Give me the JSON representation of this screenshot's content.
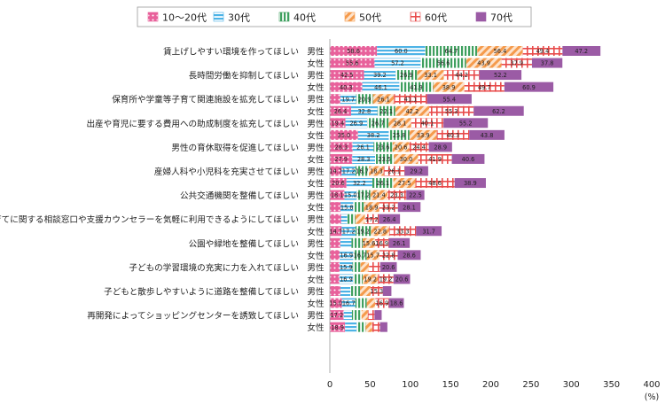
{
  "chart_data": {
    "type": "bar",
    "orientation": "horizontal",
    "stacked": true,
    "unit_label": "(%)",
    "xlim": [
      0,
      400
    ],
    "xticks": [
      0,
      50,
      100,
      150,
      200,
      250,
      300,
      350,
      400
    ],
    "grid": false,
    "legend_position": "top",
    "series": [
      {
        "name": "10～20代",
        "color": "#e8619b",
        "pattern": "dots"
      },
      {
        "name": "30代",
        "color": "#4db3e6",
        "pattern": "hstripes"
      },
      {
        "name": "40代",
        "color": "#3fa05f",
        "pattern": "vstripes"
      },
      {
        "name": "50代",
        "color": "#f59b4c",
        "pattern": "diagonal"
      },
      {
        "name": "60代",
        "color": "#e84b4b",
        "pattern": "grid"
      },
      {
        "name": "70代",
        "color": "#9b5ba5",
        "pattern": "solid"
      }
    ],
    "categories": [
      {
        "label": "賃上げしやすい環境を作ってほしい",
        "rows": [
          {
            "gender": "男性",
            "values": [
              58.6,
              60.0,
              64.7,
              56.4,
              49.4,
              47.2
            ]
          },
          {
            "gender": "女性",
            "values": [
              55.6,
              57.2,
              56.6,
              43.9,
              37.9,
              37.8
            ]
          }
        ]
      },
      {
        "label": "長時間労働を抑制してほしい",
        "rows": [
          {
            "gender": "男性",
            "values": [
              42.5,
              39.2,
              26.9,
              33.1,
              44.2,
              52.2
            ]
          },
          {
            "gender": "女性",
            "values": [
              40.3,
              46.1,
              41.9,
              38.9,
              49.7,
              60.9
            ]
          }
        ]
      },
      {
        "label": "保育所や学童等子育て関連施設を拡充してほしい",
        "rows": [
          {
            "gender": "男性",
            "values": [
              13.0,
              19.7,
              20.9,
              26.1,
              41.1,
              55.4
            ]
          },
          {
            "gender": "女性",
            "values": [
              26.4,
              32.8,
              22.1,
              42.2,
              55.3,
              62.2
            ]
          }
        ]
      },
      {
        "label": "出産や育児に要する費用への助成制度を拡充してほしい",
        "rows": [
          {
            "gender": "男性",
            "values": [
              19.4,
              26.9,
              26.7,
              28.1,
              40.1,
              55.2
            ]
          },
          {
            "gender": "女性",
            "values": [
              35.0,
              38.2,
              25.8,
              33.9,
              40.3,
              43.8
            ]
          }
        ]
      },
      {
        "label": "男性の育休取得を促進してほしい",
        "rows": [
          {
            "gender": "男性",
            "values": [
              28.3,
              26.1,
              23.6,
              20.6,
              24.4,
              28.9
            ]
          },
          {
            "gender": "女性",
            "values": [
              27.9,
              28.3,
              23.5,
              30.0,
              41.9,
              40.6
            ]
          }
        ]
      },
      {
        "label": "産婦人科や小児科を充実させてほしい",
        "rows": [
          {
            "gender": "男性",
            "values": [
              14.7,
              17.2,
              16.7,
              18.3,
              26.1,
              29.2
            ]
          },
          {
            "gender": "女性",
            "values": [
              20.6,
              32.2,
              26.1,
              27.5,
              48.6,
              38.9
            ]
          }
        ]
      },
      {
        "label": "公共交通機関を整備してほしい",
        "rows": [
          {
            "gender": "男性",
            "values": [
              18.1,
              15.0,
              17.2,
              21.4,
              23.3,
              22.5
            ]
          },
          {
            "gender": "女性",
            "values": [
              13.3,
              15.8,
              13.4,
              18.9,
              23.2,
              28.1
            ]
          }
        ]
      },
      {
        "label": "子育てに関する相談窓口や支援カウンセラーを気軽に利用できるようにしてほしい",
        "rows": [
          {
            "gender": "男性",
            "values": [
              13.9,
              7.8,
              10.0,
              11.9,
              17.2,
              26.4
            ]
          },
          {
            "gender": "女性",
            "values": [
              14.7,
              17.2,
              19.2,
              22.8,
              33.3,
              31.7
            ]
          }
        ]
      },
      {
        "label": "公園や緑地を整備してほしい",
        "rows": [
          {
            "gender": "男性",
            "values": [
              13.0,
              13.9,
              13.8,
              15.6,
              16.9,
              26.1
            ]
          },
          {
            "gender": "女性",
            "values": [
              12.2,
              16.9,
              16.7,
              15.7,
              22.8,
              28.6
            ]
          }
        ]
      },
      {
        "label": "子どもの学習環境の充実に力を入れてほしい",
        "rows": [
          {
            "gender": "男性",
            "values": [
              12.2,
              15.9,
              10.0,
              10.6,
              13.9,
              20.6
            ]
          },
          {
            "gender": "女性",
            "values": [
              11.9,
              16.9,
              11.9,
              19.2,
              19.2,
              20.6
            ]
          }
        ]
      },
      {
        "label": "子どもと散歩しやすいように道路を整備してほしい",
        "rows": [
          {
            "gender": "男性",
            "values": [
              13.1,
              12.5,
              11.9,
              13.1,
              15.3,
              10.6
            ]
          },
          {
            "gender": "女性",
            "values": [
              15.0,
              16.7,
              14.2,
              10.6,
              16.9,
              18.6
            ]
          }
        ]
      },
      {
        "label": "再開発によってショッピングセンターを誘致してほしい",
        "rows": [
          {
            "gender": "男性",
            "values": [
              17.2,
              10.3,
              11.9,
              7.8,
              8.3,
              8.9
            ]
          },
          {
            "gender": "女性",
            "values": [
              18.9,
              14.2,
              11.4,
              8.1,
              9.7,
              9.2
            ]
          }
        ]
      }
    ]
  }
}
